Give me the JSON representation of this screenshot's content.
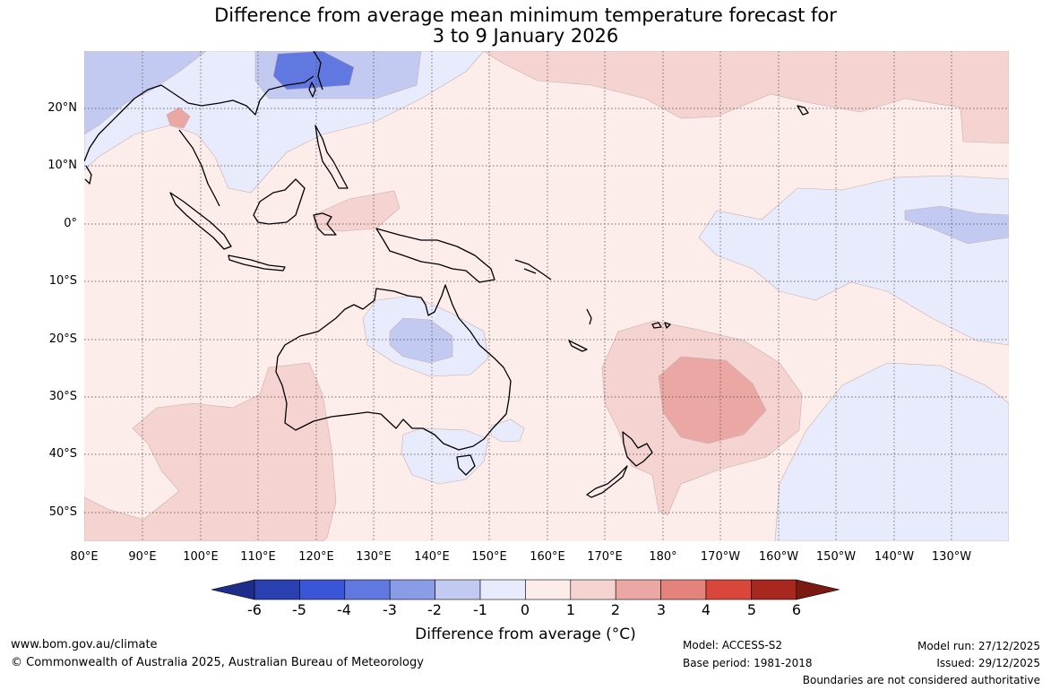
{
  "title_line1": "Difference from average mean minimum temperature forecast for",
  "title_line2": "3 to 9 January 2026",
  "lat_labels": [
    "20°N",
    "10°N",
    "0°",
    "10°S",
    "20°S",
    "30°S",
    "40°S",
    "50°S"
  ],
  "lon_labels": [
    "80°E",
    "90°E",
    "100°E",
    "110°E",
    "120°E",
    "130°E",
    "140°E",
    "150°E",
    "160°E",
    "170°E",
    "180°",
    "170°W",
    "160°W",
    "150°W",
    "140°W",
    "130°W"
  ],
  "colorbar": {
    "ticks": [
      "-6",
      "-5",
      "-4",
      "-3",
      "-2",
      "-1",
      "0",
      "1",
      "2",
      "3",
      "4",
      "5",
      "6"
    ],
    "label": "Difference from average (°C)",
    "colors": [
      "#1f2d8a",
      "#2a3fb0",
      "#3a55d8",
      "#6078e0",
      "#8a9ce8",
      "#c2caf2",
      "#e8ebfb",
      "#fcecea",
      "#f5d3d1",
      "#eaa7a3",
      "#e4837c",
      "#d9473b",
      "#a8281f",
      "#7a1a12"
    ]
  },
  "footer": {
    "website": "www.bom.gov.au/climate",
    "copyright": "© Commonwealth of Australia 2025, Australian Bureau of Meteorology",
    "model": "Model: ACCESS-S2",
    "base_period": "Base period: 1981-2018",
    "model_run": "Model run: 27/12/2025",
    "issued": "Issued: 29/12/2025",
    "disclaimer": "Boundaries are not considered authoritative"
  }
}
